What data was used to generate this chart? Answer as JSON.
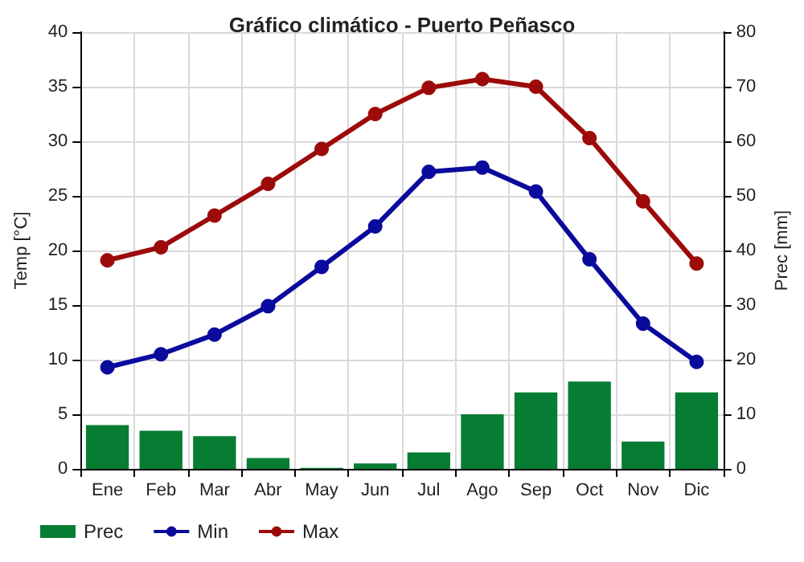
{
  "chart_data": {
    "type": "line",
    "title": "Gráfico climático - Puerto Peñasco",
    "categories": [
      "Ene",
      "Feb",
      "Mar",
      "Abr",
      "May",
      "Jun",
      "Jul",
      "Ago",
      "Sep",
      "Oct",
      "Nov",
      "Dic"
    ],
    "series": [
      {
        "name": "Prec",
        "type": "bar",
        "axis": "y2",
        "color": "#067d32",
        "values": [
          8,
          7,
          6,
          2,
          0.2,
          1,
          3,
          10,
          14,
          16,
          5,
          14
        ]
      },
      {
        "name": "Min",
        "color": "#0a0a9c",
        "values": [
          9.3,
          10.5,
          12.3,
          14.9,
          18.5,
          22.2,
          27.2,
          27.6,
          25.4,
          19.2,
          13.3,
          9.8
        ]
      },
      {
        "name": "Max",
        "color": "#9c0a0a",
        "values": [
          19.1,
          20.3,
          23.2,
          26.1,
          29.3,
          32.5,
          34.9,
          35.7,
          35.0,
          30.3,
          24.5,
          18.8
        ]
      }
    ],
    "ylabel": "Temp [°C]",
    "y2label": "Prec [mm]",
    "ylim": [
      0,
      40
    ],
    "yticks": [
      0,
      5,
      10,
      15,
      20,
      25,
      30,
      35,
      40
    ],
    "y2lim": [
      0,
      80
    ],
    "y2ticks": [
      0,
      10,
      20,
      30,
      40,
      50,
      60,
      70,
      80
    ],
    "grid": true,
    "legend": "bottom left",
    "marker": "circle",
    "line_style": "solid"
  }
}
